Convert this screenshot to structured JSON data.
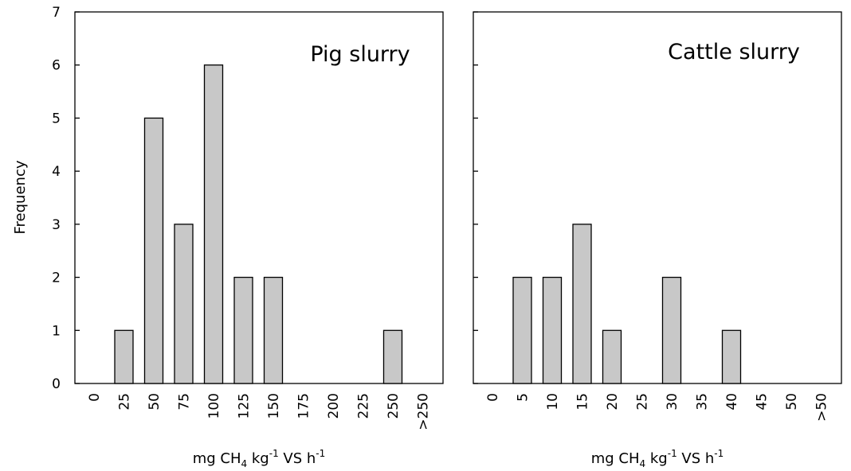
{
  "y_axis_label": "Frequency",
  "chart_data": [
    {
      "type": "bar",
      "title": "Pig slurry",
      "categories": [
        "0",
        "25",
        "50",
        "75",
        "100",
        "125",
        "150",
        "175",
        "200",
        "225",
        "250",
        ">250"
      ],
      "values": [
        0,
        1,
        5,
        3,
        6,
        2,
        2,
        0,
        0,
        0,
        1,
        0
      ],
      "xlabel": {
        "main": "mg CH",
        "sub": "4",
        "mid": " kg",
        "sup": "-1",
        "tail": " VS h",
        "sup2": "-1"
      },
      "ylabel": "Frequency",
      "ylim": [
        0,
        7
      ],
      "yticks": [
        "0",
        "1",
        "2",
        "3",
        "4",
        "5",
        "6",
        "7"
      ],
      "bar_color": "#c8c8c8",
      "grid": false
    },
    {
      "type": "bar",
      "title": "Cattle slurry",
      "categories": [
        "0",
        "5",
        "10",
        "15",
        "20",
        "25",
        "30",
        "35",
        "40",
        "45",
        "50",
        ">50"
      ],
      "values": [
        0,
        2,
        2,
        3,
        1,
        0,
        2,
        0,
        1,
        0,
        0,
        0
      ],
      "xlabel": {
        "main": "mg CH",
        "sub": "4",
        "mid": " kg",
        "sup": "-1",
        "tail": " VS h",
        "sup2": "-1"
      },
      "ylabel": "",
      "ylim": [
        0,
        7
      ],
      "yticks": [
        "0",
        "1",
        "2",
        "3",
        "4",
        "5",
        "6",
        "7"
      ],
      "bar_color": "#c8c8c8",
      "grid": false
    }
  ]
}
